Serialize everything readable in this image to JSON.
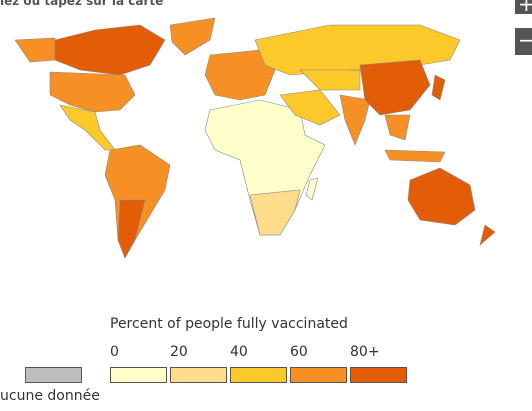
{
  "header": {
    "instruction": "iez ou tapez sur la carte"
  },
  "zoom": {
    "in": "+",
    "out": "−"
  },
  "legend": {
    "title": "Percent of people fully vaccinated",
    "items": [
      {
        "label": "0",
        "color": "#ffffcc"
      },
      {
        "label": "20",
        "color": "#fddc8a"
      },
      {
        "label": "40",
        "color": "#fbc92a"
      },
      {
        "label": "60",
        "color": "#f79024"
      },
      {
        "label": "80+",
        "color": "#e35d06"
      }
    ],
    "no_data": {
      "label": "ucune donnée",
      "color": "#bdbdbd"
    }
  }
}
